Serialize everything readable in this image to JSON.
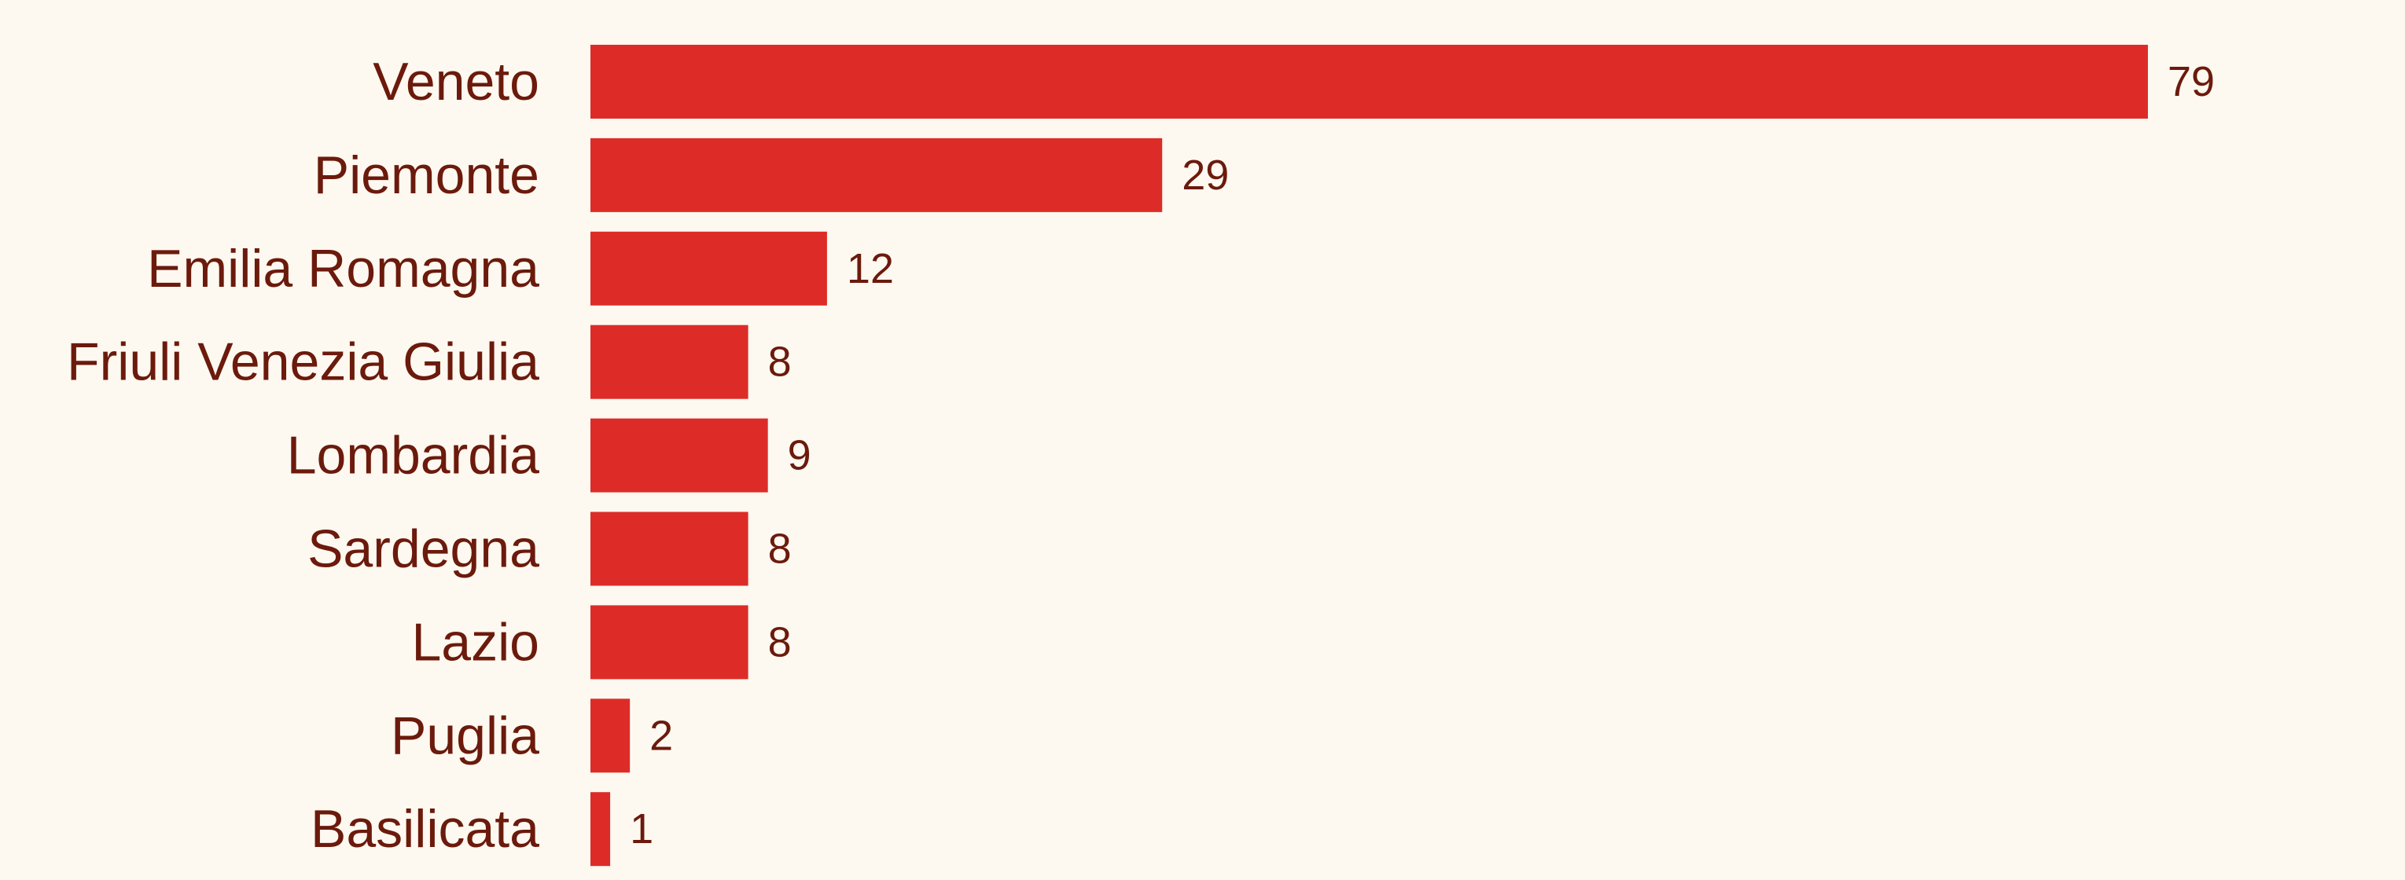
{
  "colors": {
    "background": "#fdf8f0",
    "bar": "#dd2c27",
    "text": "#6b1a0c"
  },
  "chart_data": {
    "type": "bar",
    "orientation": "horizontal",
    "title": "",
    "xlabel": "",
    "ylabel": "",
    "grid": false,
    "xlim": [
      0,
      79
    ],
    "categories": [
      "Veneto",
      "Piemonte",
      "Emilia Romagna",
      "Friuli Venezia Giulia",
      "Lombardia",
      "Sardegna",
      "Lazio",
      "Puglia",
      "Basilicata"
    ],
    "values": [
      79,
      29,
      12,
      8,
      9,
      8,
      8,
      2,
      1
    ]
  }
}
